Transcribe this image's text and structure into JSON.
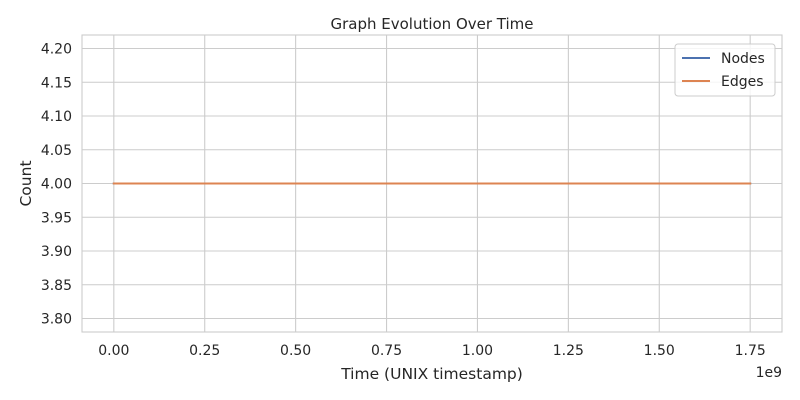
{
  "chart_data": {
    "type": "line",
    "title": "Graph Evolution Over Time",
    "xlabel": "Time (UNIX timestamp)",
    "ylabel": "Count",
    "x_offset_label": "1e9",
    "xlim": [
      -0.0875,
      1.8375
    ],
    "ylim": [
      3.78,
      4.22
    ],
    "x_ticks": [
      0.0,
      0.25,
      0.5,
      0.75,
      1.0,
      1.25,
      1.5,
      1.75
    ],
    "x_tick_labels": [
      "0.00",
      "0.25",
      "0.50",
      "0.75",
      "1.00",
      "1.25",
      "1.50",
      "1.75"
    ],
    "y_ticks": [
      3.8,
      3.85,
      3.9,
      3.95,
      4.0,
      4.05,
      4.1,
      4.15,
      4.2
    ],
    "y_tick_labels": [
      "3.80",
      "3.85",
      "3.90",
      "3.95",
      "4.00",
      "4.05",
      "4.10",
      "4.15",
      "4.20"
    ],
    "grid": true,
    "legend_position": "top-right",
    "series": [
      {
        "name": "Nodes",
        "color": "#4c72b0",
        "x": [
          0.0,
          1.75
        ],
        "y": [
          4.0,
          4.0
        ]
      },
      {
        "name": "Edges",
        "color": "#dd8452",
        "x": [
          0.0,
          1.75
        ],
        "y": [
          4.0,
          4.0
        ]
      }
    ]
  }
}
